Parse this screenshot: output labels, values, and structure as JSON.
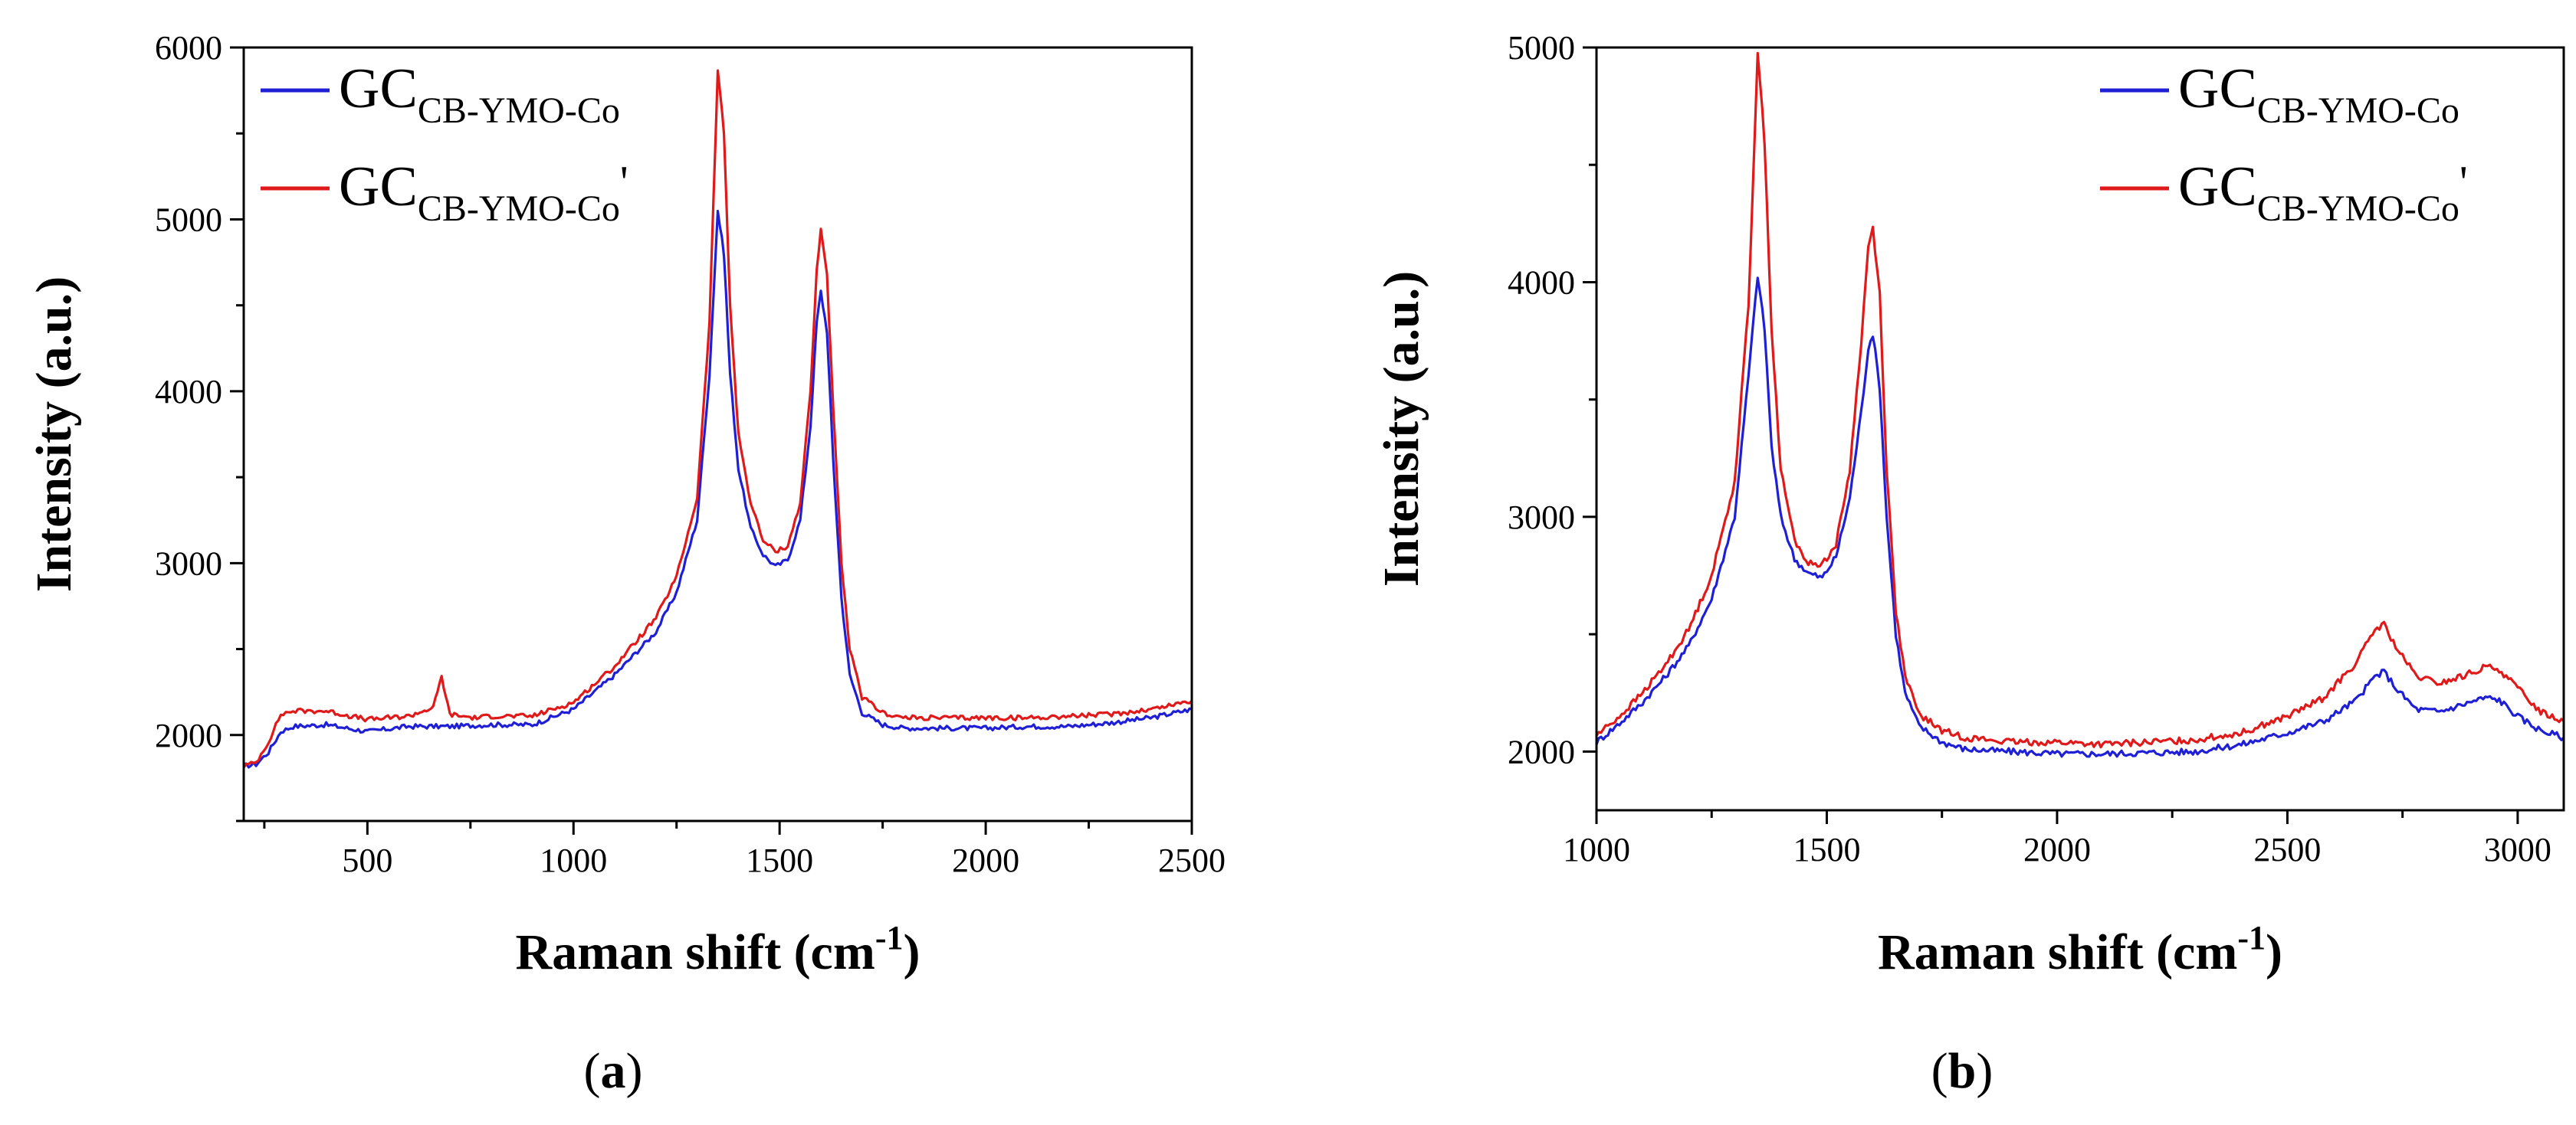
{
  "chart_data": [
    {
      "type": "line",
      "panel_label": "a",
      "xlabel": "Raman shift (cm",
      "xlabel_sup": "-1",
      "xlabel_close": ")",
      "ylabel": "Intensity (a.u.)",
      "xlim": [
        200,
        2500
      ],
      "ylim": [
        1500,
        6000
      ],
      "xticks": [
        500,
        1000,
        1500,
        2000,
        2500
      ],
      "yticks": [
        2000,
        3000,
        4000,
        5000,
        6000
      ],
      "legend_position": "top-left",
      "series": [
        {
          "name": "GC",
          "name_sub": "CB-YMO-Co",
          "name_suffix": "",
          "color": "#1f1fd6",
          "x": [
            200,
            230,
            260,
            290,
            320,
            400,
            500,
            600,
            700,
            800,
            900,
            1000,
            1100,
            1200,
            1250,
            1300,
            1330,
            1350,
            1365,
            1380,
            1400,
            1430,
            1460,
            1490,
            1520,
            1550,
            1575,
            1590,
            1600,
            1615,
            1630,
            1650,
            1670,
            1700,
            1750,
            1800,
            1900,
            2000,
            2100,
            2200,
            2300,
            2400,
            2500
          ],
          "y": [
            1820,
            1830,
            1900,
            2020,
            2050,
            2060,
            2020,
            2050,
            2050,
            2060,
            2060,
            2150,
            2350,
            2600,
            2830,
            3250,
            4100,
            5050,
            4800,
            4100,
            3550,
            3200,
            3050,
            2980,
            3020,
            3250,
            3800,
            4400,
            4580,
            4350,
            3600,
            2800,
            2350,
            2130,
            2060,
            2040,
            2040,
            2040,
            2050,
            2050,
            2070,
            2100,
            2150
          ]
        },
        {
          "name": "GC",
          "name_sub": "CB-YMO-Co",
          "name_suffix": "'",
          "color": "#e01a1a",
          "x": [
            200,
            230,
            260,
            290,
            320,
            400,
            500,
            600,
            660,
            680,
            700,
            760,
            800,
            900,
            1000,
            1100,
            1200,
            1250,
            1300,
            1330,
            1350,
            1365,
            1380,
            1400,
            1430,
            1460,
            1490,
            1520,
            1550,
            1575,
            1590,
            1600,
            1615,
            1630,
            1650,
            1670,
            1700,
            1750,
            1800,
            1900,
            2000,
            2100,
            2200,
            2300,
            2400,
            2500
          ],
          "y": [
            1820,
            1840,
            1960,
            2120,
            2140,
            2140,
            2090,
            2110,
            2160,
            2340,
            2120,
            2100,
            2110,
            2110,
            2190,
            2400,
            2680,
            2920,
            3380,
            4400,
            5870,
            5500,
            4500,
            3750,
            3350,
            3130,
            3070,
            3100,
            3350,
            4000,
            4700,
            4950,
            4680,
            3900,
            3000,
            2500,
            2220,
            2130,
            2100,
            2100,
            2100,
            2100,
            2110,
            2120,
            2150,
            2200
          ]
        }
      ]
    },
    {
      "type": "line",
      "panel_label": "b",
      "xlabel": "Raman shift (cm",
      "xlabel_sup": "-1",
      "xlabel_close": ")",
      "ylabel": "Intensity (a.u.)",
      "xlim": [
        1000,
        3100
      ],
      "ylim": [
        1750,
        5000
      ],
      "xticks": [
        1000,
        1500,
        2000,
        2500,
        3000
      ],
      "yticks": [
        2000,
        3000,
        4000,
        5000
      ],
      "legend_position": "top-right",
      "series": [
        {
          "name": "GC",
          "name_sub": "CB-YMO-Co",
          "name_suffix": "",
          "color": "#1f1fd6",
          "x": [
            1000,
            1050,
            1100,
            1150,
            1200,
            1250,
            1300,
            1330,
            1350,
            1365,
            1380,
            1400,
            1430,
            1460,
            1490,
            1520,
            1550,
            1575,
            1590,
            1600,
            1615,
            1630,
            1650,
            1670,
            1700,
            1750,
            1800,
            1900,
            2000,
            2100,
            2200,
            2300,
            2400,
            2500,
            2580,
            2650,
            2690,
            2710,
            2740,
            2780,
            2830,
            2880,
            2930,
            2960,
            3000,
            3050,
            3100
          ],
          "y": [
            2040,
            2120,
            2210,
            2320,
            2450,
            2650,
            3000,
            3600,
            4030,
            3800,
            3300,
            3000,
            2820,
            2760,
            2740,
            2830,
            3080,
            3450,
            3720,
            3780,
            3550,
            3000,
            2500,
            2250,
            2110,
            2040,
            2010,
            2000,
            1990,
            1990,
            1995,
            2000,
            2030,
            2080,
            2130,
            2220,
            2320,
            2340,
            2260,
            2180,
            2170,
            2200,
            2230,
            2220,
            2150,
            2090,
            2060
          ]
        },
        {
          "name": "GC",
          "name_sub": "CB-YMO-Co",
          "name_suffix": "'",
          "color": "#e01a1a",
          "x": [
            1000,
            1050,
            1100,
            1150,
            1200,
            1250,
            1300,
            1330,
            1350,
            1365,
            1380,
            1400,
            1430,
            1460,
            1490,
            1520,
            1550,
            1575,
            1590,
            1600,
            1615,
            1630,
            1650,
            1670,
            1700,
            1750,
            1800,
            1900,
            2000,
            2100,
            2200,
            2300,
            2400,
            2500,
            2580,
            2650,
            2690,
            2710,
            2740,
            2780,
            2830,
            2880,
            2930,
            2960,
            3000,
            3050,
            3100
          ],
          "y": [
            2070,
            2150,
            2250,
            2370,
            2520,
            2750,
            3150,
            3900,
            4980,
            4600,
            3800,
            3200,
            2900,
            2800,
            2800,
            2880,
            3200,
            3750,
            4150,
            4230,
            3950,
            3200,
            2600,
            2320,
            2160,
            2090,
            2060,
            2040,
            2040,
            2030,
            2040,
            2050,
            2080,
            2150,
            2230,
            2380,
            2520,
            2540,
            2430,
            2320,
            2290,
            2320,
            2360,
            2350,
            2270,
            2170,
            2130
          ]
        }
      ]
    }
  ]
}
